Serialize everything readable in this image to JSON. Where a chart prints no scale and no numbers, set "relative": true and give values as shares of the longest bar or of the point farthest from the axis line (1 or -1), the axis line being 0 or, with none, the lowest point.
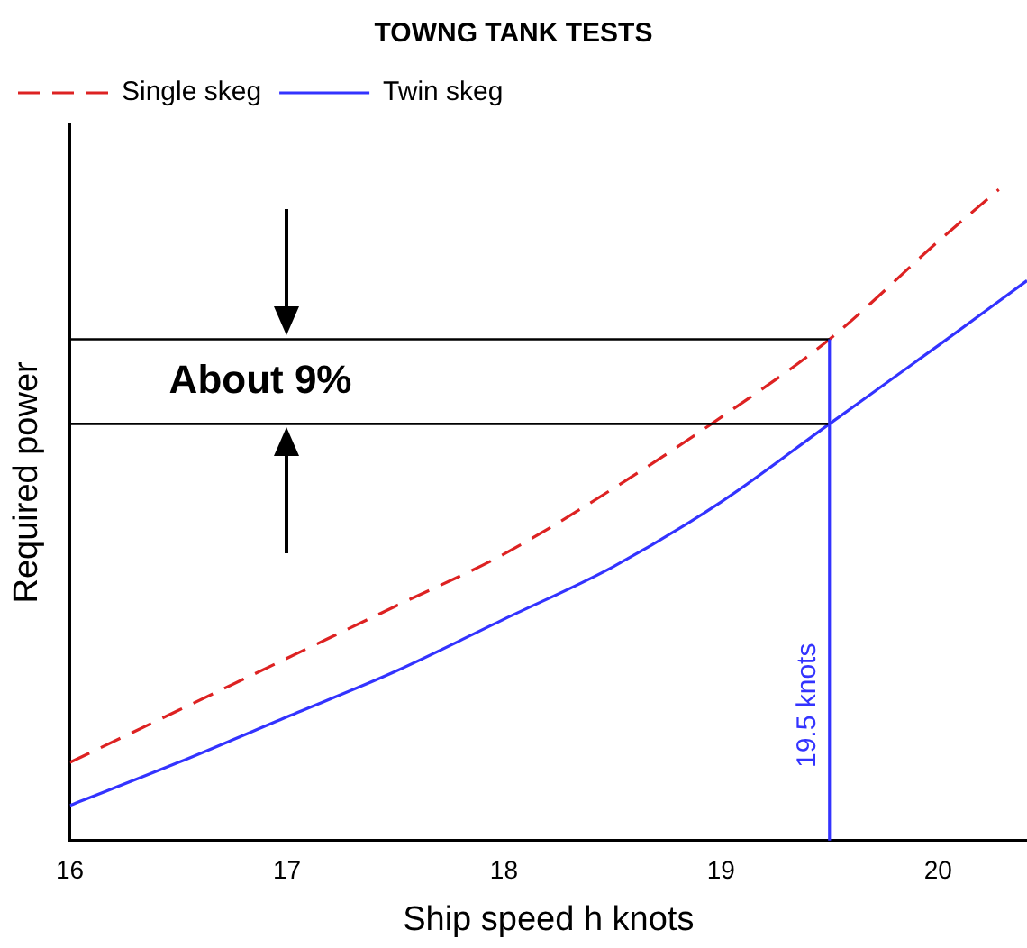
{
  "chart_data": {
    "type": "line",
    "title": "TOWNG TANK TESTS",
    "xlabel": "Ship speed h knots",
    "ylabel": "Required power",
    "relative": true,
    "xlim": [
      16,
      20.41
    ],
    "xticks": [
      16,
      17,
      18,
      19,
      20
    ],
    "grid": false,
    "legend": "top left",
    "marker": "none",
    "series": [
      {
        "name": "Single skeg",
        "color": "#dd2222",
        "line_style": "dashed",
        "x": [
          16,
          16.5,
          17,
          17.5,
          18,
          18.5,
          19,
          19.5,
          20,
          20.28
        ],
        "values": [
          0.12,
          0.2,
          0.28,
          0.36,
          0.44,
          0.54,
          0.65,
          0.77,
          0.92,
          1.0
        ]
      },
      {
        "name": "Twin skeg",
        "color": "#3333ff",
        "line_style": "solid",
        "x": [
          16,
          16.5,
          17,
          17.5,
          18,
          18.5,
          19,
          19.5,
          20,
          20.41
        ],
        "values": [
          0.054,
          0.12,
          0.19,
          0.26,
          0.34,
          0.42,
          0.52,
          0.64,
          0.76,
          0.86
        ]
      }
    ],
    "annotations": [
      "About 9%"
    ],
    "ref_lines": [
      {
        "axis": "y",
        "value": 0.77,
        "color": "#000000"
      },
      {
        "axis": "y",
        "value": 0.64,
        "color": "#000000"
      },
      {
        "axis": "x",
        "value": 19.5,
        "label": "19.5 knots",
        "color": "#3333ff"
      }
    ]
  }
}
